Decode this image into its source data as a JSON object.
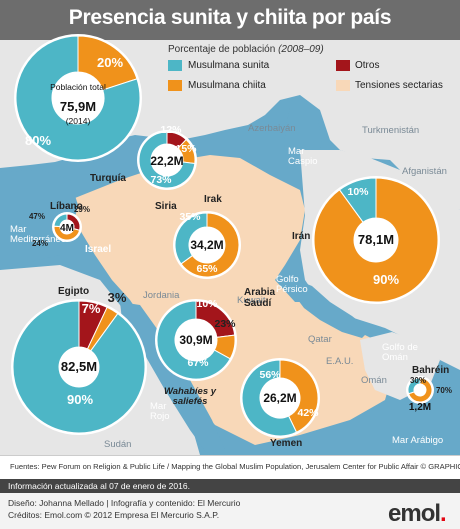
{
  "title": "Presencia sunita y chiita por país",
  "legend": {
    "title_prefix": "Porcentaje de población",
    "title_period": "(2008–09)",
    "items": [
      {
        "label": "Musulmana sunita",
        "color": "#4db6c6"
      },
      {
        "label": "Otros",
        "color": "#a3151b"
      },
      {
        "label": "Musulmana chiita",
        "color": "#f0921b"
      },
      {
        "label": "Tensiones sectarias",
        "color": "#f8d8b8"
      }
    ]
  },
  "colors": {
    "sunni": "#4db6c6",
    "shia": "#f0921b",
    "other": "#a3151b",
    "tension": "#f8d8b8",
    "sea": "#67a9c9",
    "land": "#e4e4e4"
  },
  "regions": {
    "azerbaiyan": "Azerbaiyán",
    "turkmenistan": "Turkmenistán",
    "afganistan": "Afganistán",
    "jordania": "Jordania",
    "kuwait": "Kuwait",
    "qatar": "Qatar",
    "eau": "E.A.U.",
    "oman": "Omán",
    "sudan": "Sudán"
  },
  "waters": {
    "caspio": "Mar Caspio",
    "mediterraneo": "Mar Mediterráneo",
    "persico": "Golfo Pérsico",
    "golfo_oman": "Golfo de Omán",
    "rojo": "Mar Rojo",
    "arabigo": "Mar Arábigo"
  },
  "chart_data": [
    {
      "type": "pie",
      "country": "Turquía",
      "population": "75,9M",
      "population_label": "Población total",
      "year": "(2014)",
      "slices": [
        {
          "name": "Musulmana sunita",
          "value": 80,
          "label": "80%"
        },
        {
          "name": "Musulmana chiita",
          "value": 20,
          "label": "20%"
        }
      ]
    },
    {
      "type": "pie",
      "country": "Siria",
      "population": "22,2M",
      "slices": [
        {
          "name": "Musulmana sunita",
          "value": 73,
          "label": "73%"
        },
        {
          "name": "Otros",
          "value": 12,
          "label": "12%"
        },
        {
          "name": "Musulmana chiita",
          "value": 15,
          "label": "15%"
        }
      ]
    },
    {
      "type": "pie",
      "country": "Líbano",
      "population": "4M",
      "slices": [
        {
          "name": "Musulmana sunita",
          "value": 24,
          "label": "24%"
        },
        {
          "name": "Otros",
          "value": 29,
          "label": "29%"
        },
        {
          "name": "Musulmana chiita",
          "value": 47,
          "label": "47%"
        }
      ]
    },
    {
      "type": "pie",
      "country": "Israel",
      "population": "",
      "slices": []
    },
    {
      "type": "pie",
      "country": "Irak",
      "population": "34,2M",
      "slices": [
        {
          "name": "Musulmana sunita",
          "value": 35,
          "label": "35%"
        },
        {
          "name": "Musulmana chiita",
          "value": 65,
          "label": "65%"
        }
      ]
    },
    {
      "type": "pie",
      "country": "Irán",
      "population": "78,1M",
      "slices": [
        {
          "name": "Musulmana sunita",
          "value": 10,
          "label": "10%"
        },
        {
          "name": "Musulmana chiita",
          "value": 90,
          "label": "90%"
        }
      ]
    },
    {
      "type": "pie",
      "country": "Egipto",
      "population": "82,5M",
      "slices": [
        {
          "name": "Musulmana sunita",
          "value": 90,
          "label": "90%"
        },
        {
          "name": "Otros",
          "value": 7,
          "label": "7%"
        },
        {
          "name": "Musulmana chiita",
          "value": 3,
          "label": "3%"
        }
      ]
    },
    {
      "type": "pie",
      "country": "Arabia Saudí",
      "population": "30,9M",
      "slices": [
        {
          "name": "Musulmana sunita",
          "value": 67,
          "label": "67%"
        },
        {
          "name": "Musulmana chiita",
          "value": 10,
          "label": "10%"
        },
        {
          "name": "Otros",
          "value": 23,
          "label": "23%"
        }
      ]
    },
    {
      "type": "pie",
      "country": "Yemen",
      "population": "26,2M",
      "slices": [
        {
          "name": "Musulmana sunita",
          "value": 56,
          "label": "56%"
        },
        {
          "name": "Musulmana chiita",
          "value": 42,
          "label": "42%"
        }
      ]
    },
    {
      "type": "pie",
      "country": "Bahréin",
      "population": "1,2M",
      "slices": [
        {
          "name": "Musulmana sunita",
          "value": 30,
          "label": "30%"
        },
        {
          "name": "Musulmana chiita",
          "value": 70,
          "label": "70%"
        }
      ]
    }
  ],
  "annotation": {
    "wahabies": "Wahabíes y saliefés"
  },
  "source": "Fuentes: Pew Forum on Religion & Public Life / Mapping the Global Muslim Population, Jerusalem Center for Public Affair © GRAPHIC NEWS",
  "updated": "Información actualizada al 07 de enero de 2016.",
  "footer": {
    "line1": "Diseño: Johanna Mellado | Infografía y contenido: El Mercurio",
    "line2": "Créditos: Emol.com  ©  2012 Empresa El Mercurio S.A.P.",
    "brand": "emol",
    "brand_dot": "."
  }
}
